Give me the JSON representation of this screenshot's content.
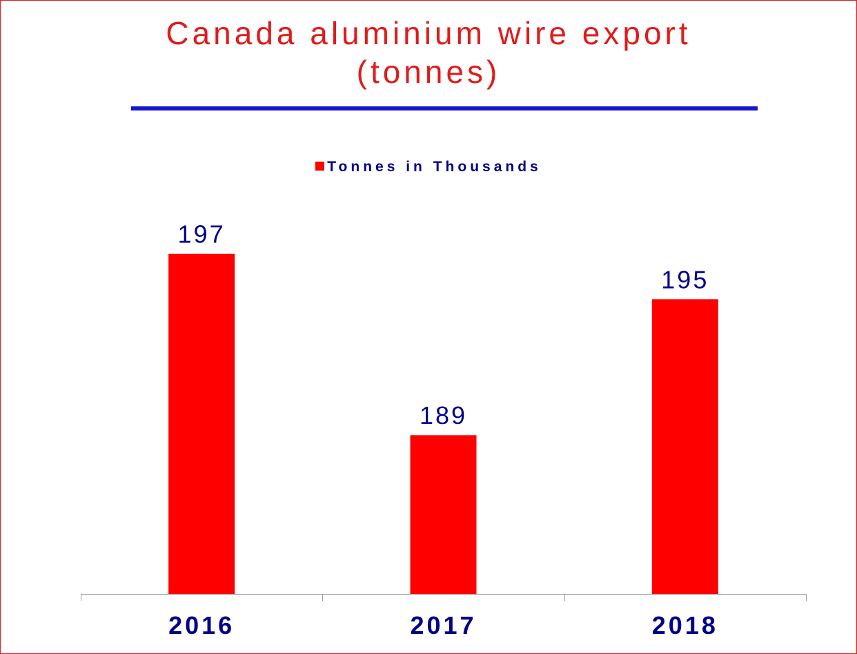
{
  "colors": {
    "title": "#e01b1b",
    "frame": "#e01b1b",
    "rule": "#1414d4",
    "bar": "#ff0000",
    "text": "#00008b",
    "axis": "#9a9a9a"
  },
  "title_lines": [
    "Canada aluminium wire export",
    "(tonnes)"
  ],
  "chart_data": {
    "type": "bar",
    "title": "Canada aluminium wire export (tonnes)",
    "categories": [
      "2016",
      "2017",
      "2018"
    ],
    "series": [
      {
        "name": "Tonnes in Thousands",
        "values": [
          197,
          189,
          195
        ]
      }
    ],
    "data_labels": [
      "197",
      "189",
      "195"
    ],
    "xlabel": "",
    "ylabel": "",
    "ylim": [
      182,
      199
    ],
    "grid": false,
    "legend_position": "top-center"
  }
}
